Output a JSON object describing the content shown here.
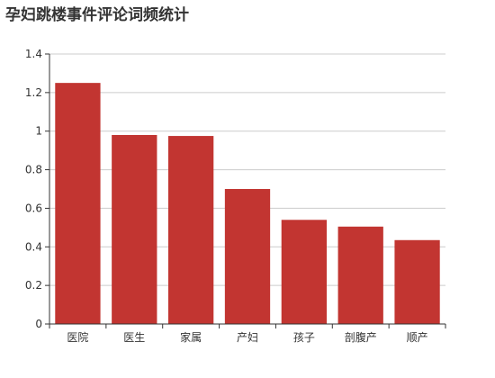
{
  "chart_data": {
    "type": "bar",
    "title": "孕妇跳楼事件评论词频统计",
    "categories": [
      "医院",
      "医生",
      "家属",
      "产妇",
      "孩子",
      "剖腹产",
      "顺产"
    ],
    "values": [
      1.25,
      0.98,
      0.975,
      0.7,
      0.54,
      0.505,
      0.435
    ],
    "ylim": [
      0,
      1.4
    ],
    "yticks": [
      0,
      0.2,
      0.4,
      0.6,
      0.8,
      1,
      1.2,
      1.4
    ],
    "grid": true,
    "colors": {
      "bar": "#c23531",
      "grid": "#cccccc",
      "axis": "#333333"
    }
  }
}
